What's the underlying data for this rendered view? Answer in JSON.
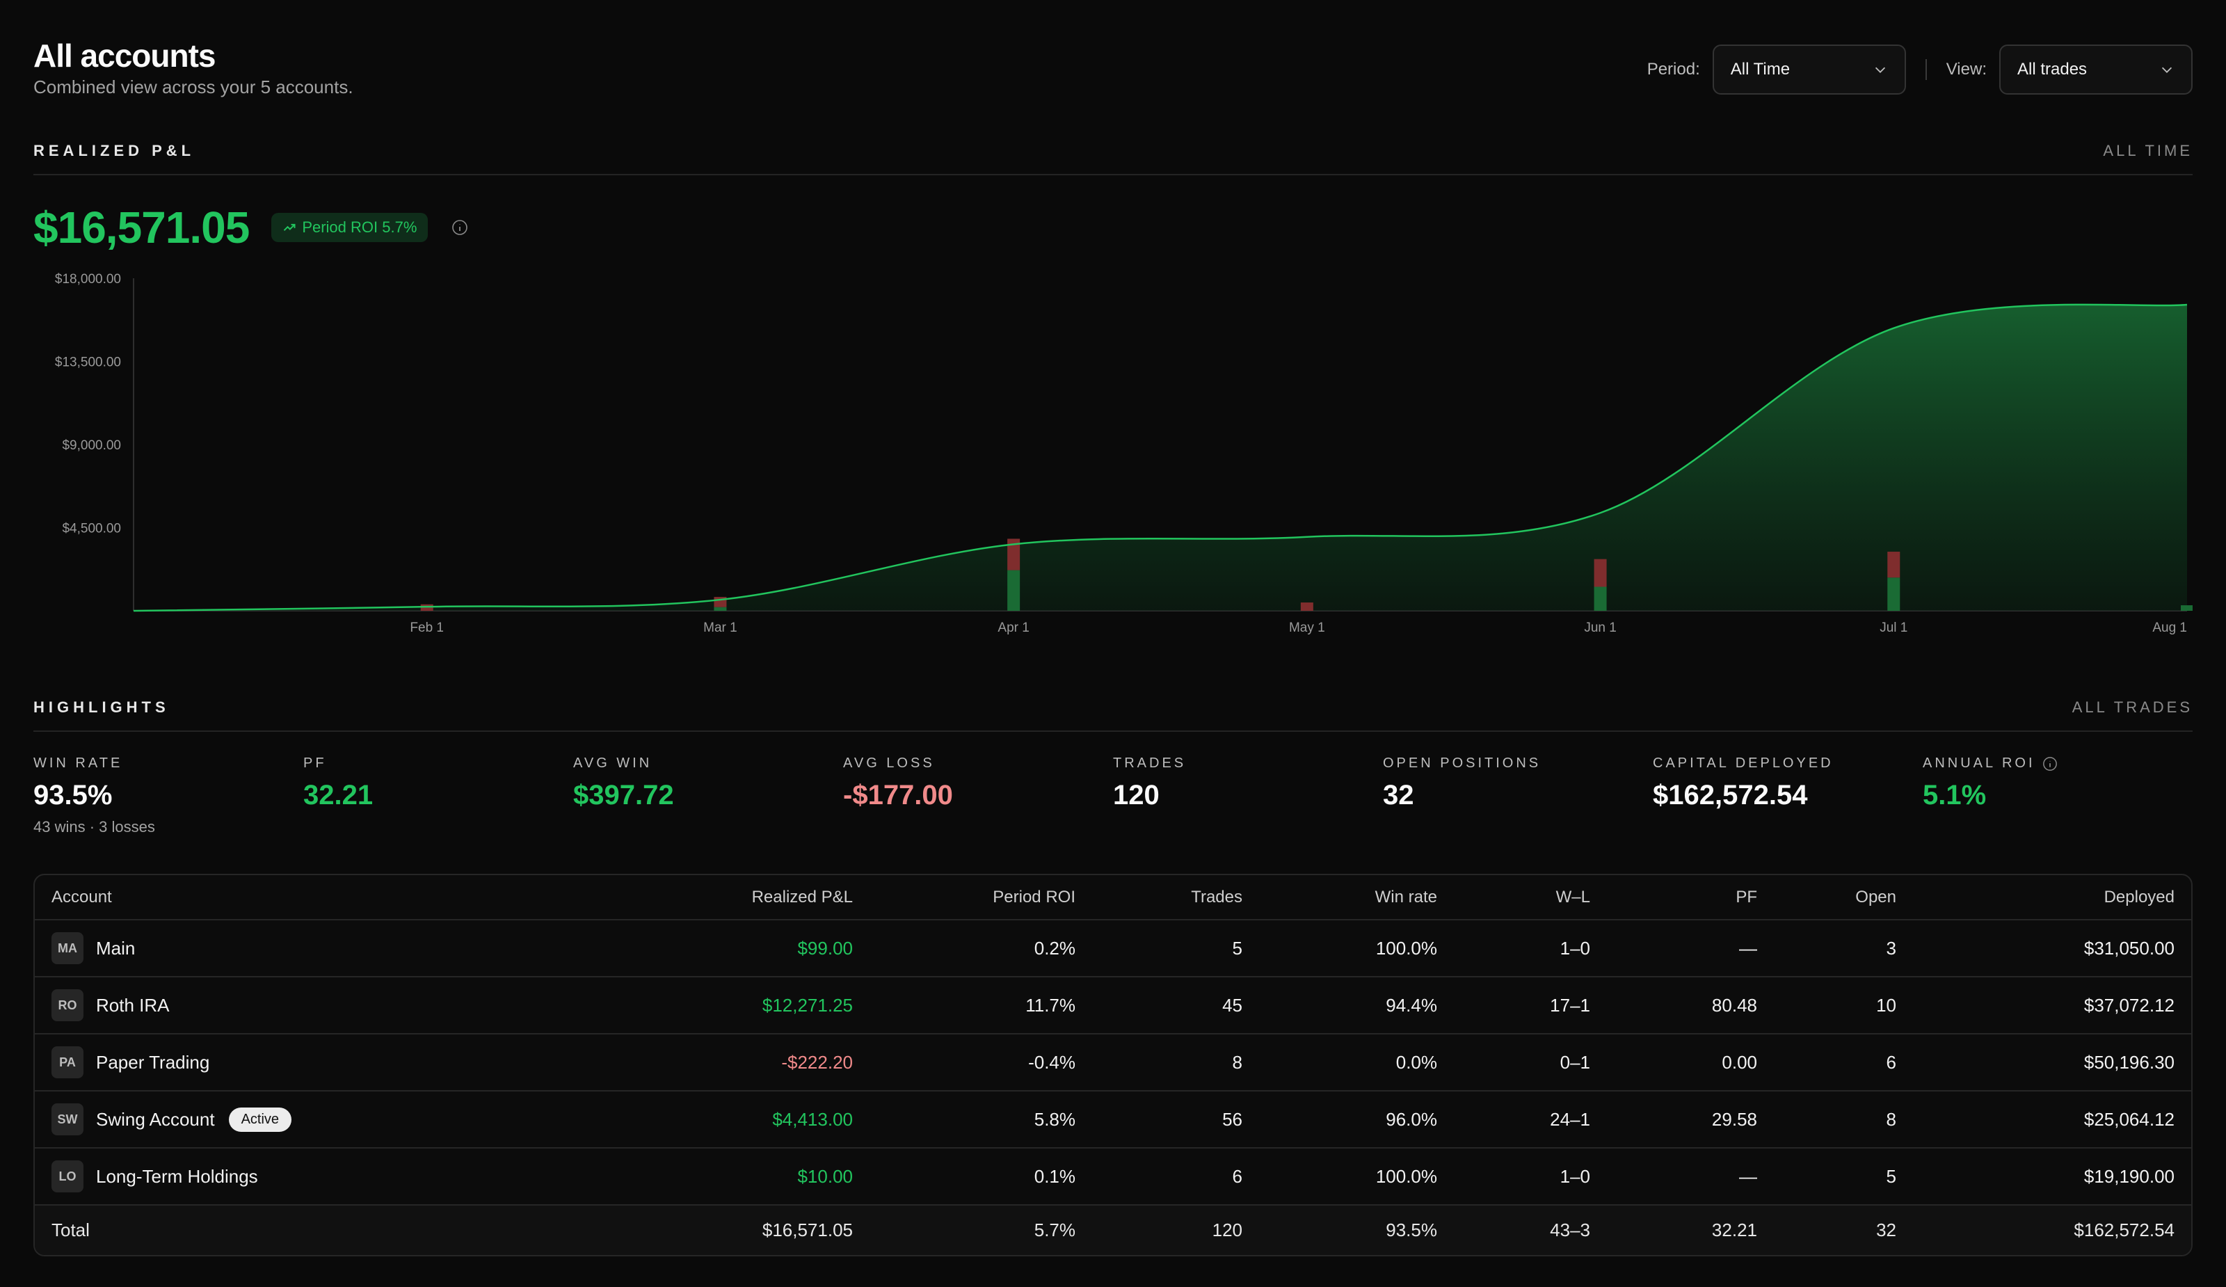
{
  "header": {
    "title": "All accounts",
    "subtitle": "Combined view across your 5 accounts.",
    "period_label": "Period:",
    "period_value": "All Time",
    "view_label": "View:",
    "view_value": "All trades"
  },
  "pnl": {
    "section_title": "REALIZED P&L",
    "section_meta": "ALL TIME",
    "value": "$16,571.05",
    "roi_pill": "Period ROI 5.7%"
  },
  "chart_data": {
    "type": "area",
    "title": "",
    "y_ticks": [
      "$18,000.00",
      "$13,500.00",
      "$9,000.00",
      "$4,500.00"
    ],
    "ylim": [
      0,
      18000
    ],
    "x_ticks": [
      "Feb 1",
      "Mar 1",
      "Apr 1",
      "May 1",
      "Jun 1",
      "Jul 1",
      "Aug 1"
    ],
    "x_domain": [
      "Jan 1",
      "Aug 1"
    ],
    "series": [
      {
        "x": [
          "Jan 1",
          "Feb 1",
          "Mar 1",
          "Apr 1",
          "May 1",
          "Jun 1",
          "Jul 1",
          "Aug 1"
        ],
        "values": [
          0,
          220,
          600,
          3600,
          4000,
          5300,
          15300,
          16571.05
        ]
      }
    ],
    "bars": [
      {
        "x": "Feb 1",
        "gain": 0,
        "loss": 350
      },
      {
        "x": "Mar 1",
        "gain": 200,
        "loss": 550
      },
      {
        "x": "Apr 1",
        "gain": 2200,
        "loss": 1700
      },
      {
        "x": "May 1",
        "gain": 0,
        "loss": 450
      },
      {
        "x": "Jun 1",
        "gain": 1300,
        "loss": 1500
      },
      {
        "x": "Jul 1",
        "gain": 1800,
        "loss": 1400
      },
      {
        "x": "Aug 1",
        "gain": 300,
        "loss": 0
      }
    ],
    "colors": {
      "line": "#22c55e",
      "gain": "#1a6b34",
      "loss": "#7f2d2d"
    },
    "grid": false
  },
  "highlights": {
    "section_title": "HIGHLIGHTS",
    "section_meta": "ALL TRADES",
    "stats": [
      {
        "label": "WIN RATE",
        "value": "93.5%",
        "sub": "43 wins · 3 losses"
      },
      {
        "label": "PF",
        "value": "32.21"
      },
      {
        "label": "AVG WIN",
        "value": "$397.72"
      },
      {
        "label": "AVG LOSS",
        "value": "-$177.00"
      },
      {
        "label": "TRADES",
        "value": "120"
      },
      {
        "label": "OPEN POSITIONS",
        "value": "32"
      },
      {
        "label": "CAPITAL DEPLOYED",
        "value": "$162,572.54"
      },
      {
        "label": "ANNUAL ROI",
        "value": "5.1%"
      }
    ]
  },
  "table": {
    "columns": [
      "Account",
      "Realized P&L",
      "Period ROI",
      "Trades",
      "Win rate",
      "W–L",
      "PF",
      "Open",
      "Deployed"
    ],
    "rows": [
      {
        "initials": "MA",
        "name": "Main",
        "badge": "",
        "pnl": "$99.00",
        "roi": "0.2%",
        "trades": "5",
        "winrate": "100.0%",
        "wl": "1–0",
        "pf": "—",
        "open": "3",
        "deployed": "$31,050.00"
      },
      {
        "initials": "RO",
        "name": "Roth IRA",
        "badge": "",
        "pnl": "$12,271.25",
        "roi": "11.7%",
        "trades": "45",
        "winrate": "94.4%",
        "wl": "17–1",
        "pf": "80.48",
        "open": "10",
        "deployed": "$37,072.12"
      },
      {
        "initials": "PA",
        "name": "Paper Trading",
        "badge": "",
        "pnl": "-$222.20",
        "roi": "-0.4%",
        "trades": "8",
        "winrate": "0.0%",
        "wl": "0–1",
        "pf": "0.00",
        "open": "6",
        "deployed": "$50,196.30"
      },
      {
        "initials": "SW",
        "name": "Swing Account",
        "badge": "Active",
        "pnl": "$4,413.00",
        "roi": "5.8%",
        "trades": "56",
        "winrate": "96.0%",
        "wl": "24–1",
        "pf": "29.58",
        "open": "8",
        "deployed": "$25,064.12"
      },
      {
        "initials": "LO",
        "name": "Long-Term Holdings",
        "badge": "",
        "pnl": "$10.00",
        "roi": "0.1%",
        "trades": "6",
        "winrate": "100.0%",
        "wl": "1–0",
        "pf": "—",
        "open": "5",
        "deployed": "$19,190.00"
      }
    ],
    "total": {
      "label": "Total",
      "pnl": "$16,571.05",
      "roi": "5.7%",
      "trades": "120",
      "winrate": "93.5%",
      "wl": "43–3",
      "pf": "32.21",
      "open": "32",
      "deployed": "$162,572.54"
    }
  },
  "colors": {
    "positive": "#22c55e",
    "negative": "#f08a8a"
  }
}
